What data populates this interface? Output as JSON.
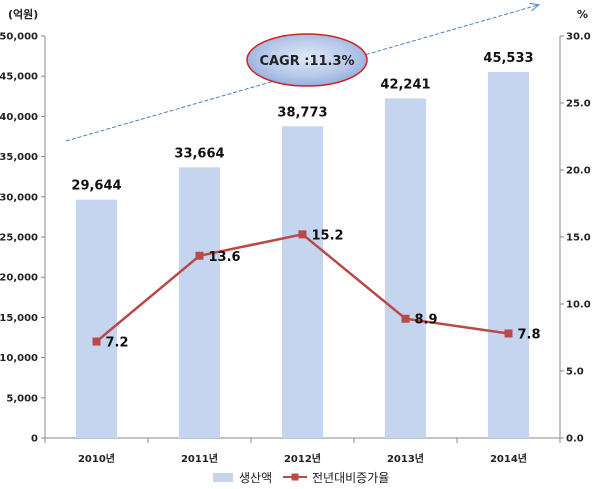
{
  "chart_data": {
    "type": "bar",
    "categories": [
      "2010년",
      "2011년",
      "2012년",
      "2013년",
      "2014년"
    ],
    "y_left_unit": "(억원)",
    "y_right_unit": "%",
    "ylim_left": [
      0,
      50000
    ],
    "yticks_left": [
      "0",
      "5,000",
      "10,000",
      "15,000",
      "20,000",
      "25,000",
      "30,000",
      "35,000",
      "40,000",
      "45,000",
      "50,000"
    ],
    "ylim_right": [
      0,
      30
    ],
    "yticks_right": [
      "0.0",
      "5.0",
      "10.0",
      "15.0",
      "20.0",
      "25.0",
      "30.0"
    ],
    "series": [
      {
        "name": "생산액",
        "type": "bar",
        "axis": "left",
        "color": "#c5d5ef",
        "values": [
          29644,
          33664,
          38773,
          42241,
          45533
        ],
        "labels": [
          "29,644",
          "33,664",
          "38,773",
          "42,241",
          "45,533"
        ]
      },
      {
        "name": "전년대비증가율",
        "type": "line",
        "axis": "right",
        "color": "#b94a48",
        "values": [
          7.2,
          13.6,
          15.2,
          8.9,
          7.8
        ],
        "labels": [
          "7.2",
          "13.6",
          "15.2",
          "8.9",
          "7.8"
        ]
      }
    ],
    "annotation": "CAGR :11.3%",
    "legend_position": "bottom",
    "grid": false
  }
}
